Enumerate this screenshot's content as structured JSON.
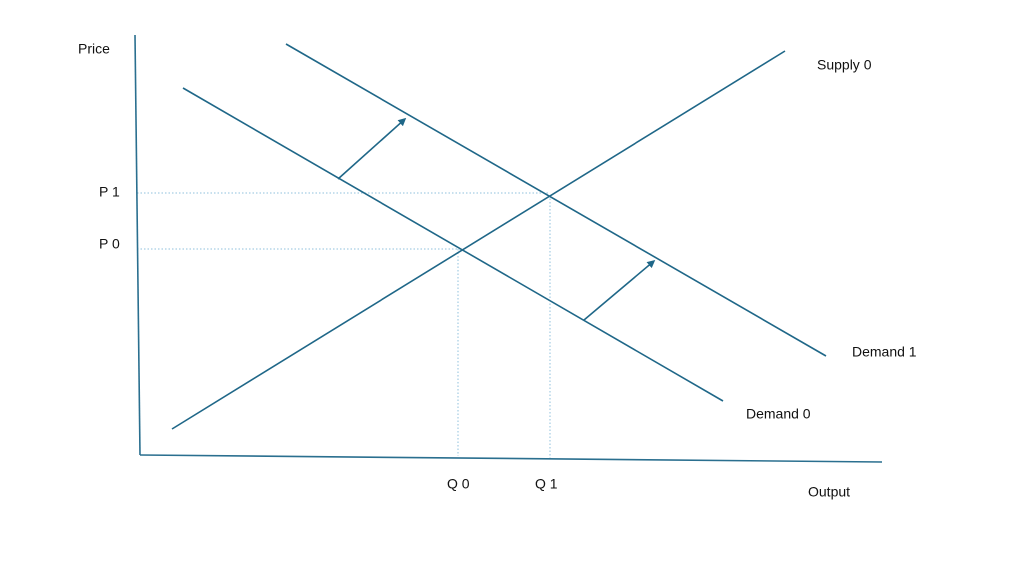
{
  "axes": {
    "y_label": "Price",
    "x_label": "Output"
  },
  "curves": {
    "supply_0": "Supply 0",
    "demand_0": "Demand 0",
    "demand_1": "Demand 1"
  },
  "price_levels": [
    "P 0",
    "P 1"
  ],
  "quantity_levels": [
    "Q 0",
    "Q 1"
  ]
}
